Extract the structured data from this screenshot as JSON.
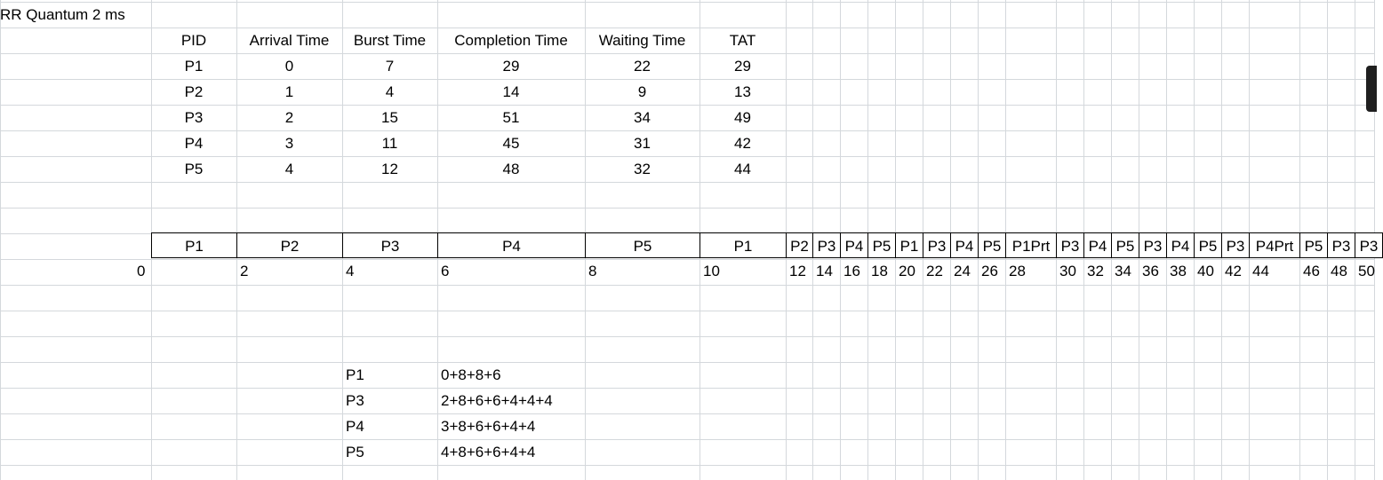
{
  "sheet": {
    "title": "RR Quantum 2 ms"
  },
  "table": {
    "headers": [
      "PID",
      "Arrival Time",
      "Burst Time",
      "Completion Time",
      "Waiting Time",
      "TAT"
    ],
    "rows": [
      [
        "P1",
        "0",
        "7",
        "29",
        "22",
        "29"
      ],
      [
        "P2",
        "1",
        "4",
        "14",
        "9",
        "13"
      ],
      [
        "P3",
        "2",
        "15",
        "51",
        "34",
        "49"
      ],
      [
        "P4",
        "3",
        "11",
        "45",
        "31",
        "42"
      ],
      [
        "P5",
        "4",
        "12",
        "48",
        "32",
        "44"
      ]
    ]
  },
  "gantt": {
    "labels": [
      "P1",
      "P2",
      "P3",
      "P4",
      "P5",
      "P1",
      "P2",
      "P3",
      "P4",
      "P5",
      "P1",
      "P3",
      "P4",
      "P5",
      "P1Prt",
      "P3",
      "P4",
      "P5",
      "P3",
      "P4",
      "P5",
      "P3",
      "P4Prt",
      "P5",
      "P3",
      "P3"
    ],
    "times": [
      "0",
      "2",
      "4",
      "6",
      "8",
      "10",
      "12",
      "14",
      "16",
      "18",
      "20",
      "22",
      "24",
      "26",
      "28",
      "30",
      "32",
      "34",
      "36",
      "38",
      "40",
      "42",
      "44",
      "46",
      "48",
      "50"
    ]
  },
  "notes": [
    {
      "pid": "P1",
      "expr": "0+8+8+6"
    },
    {
      "pid": "P3",
      "expr": "2+8+6+6+4+4+4"
    },
    {
      "pid": "P4",
      "expr": "3+8+6+6+4+4"
    },
    {
      "pid": "P5",
      "expr": "4+8+6+6+4+4"
    }
  ]
}
